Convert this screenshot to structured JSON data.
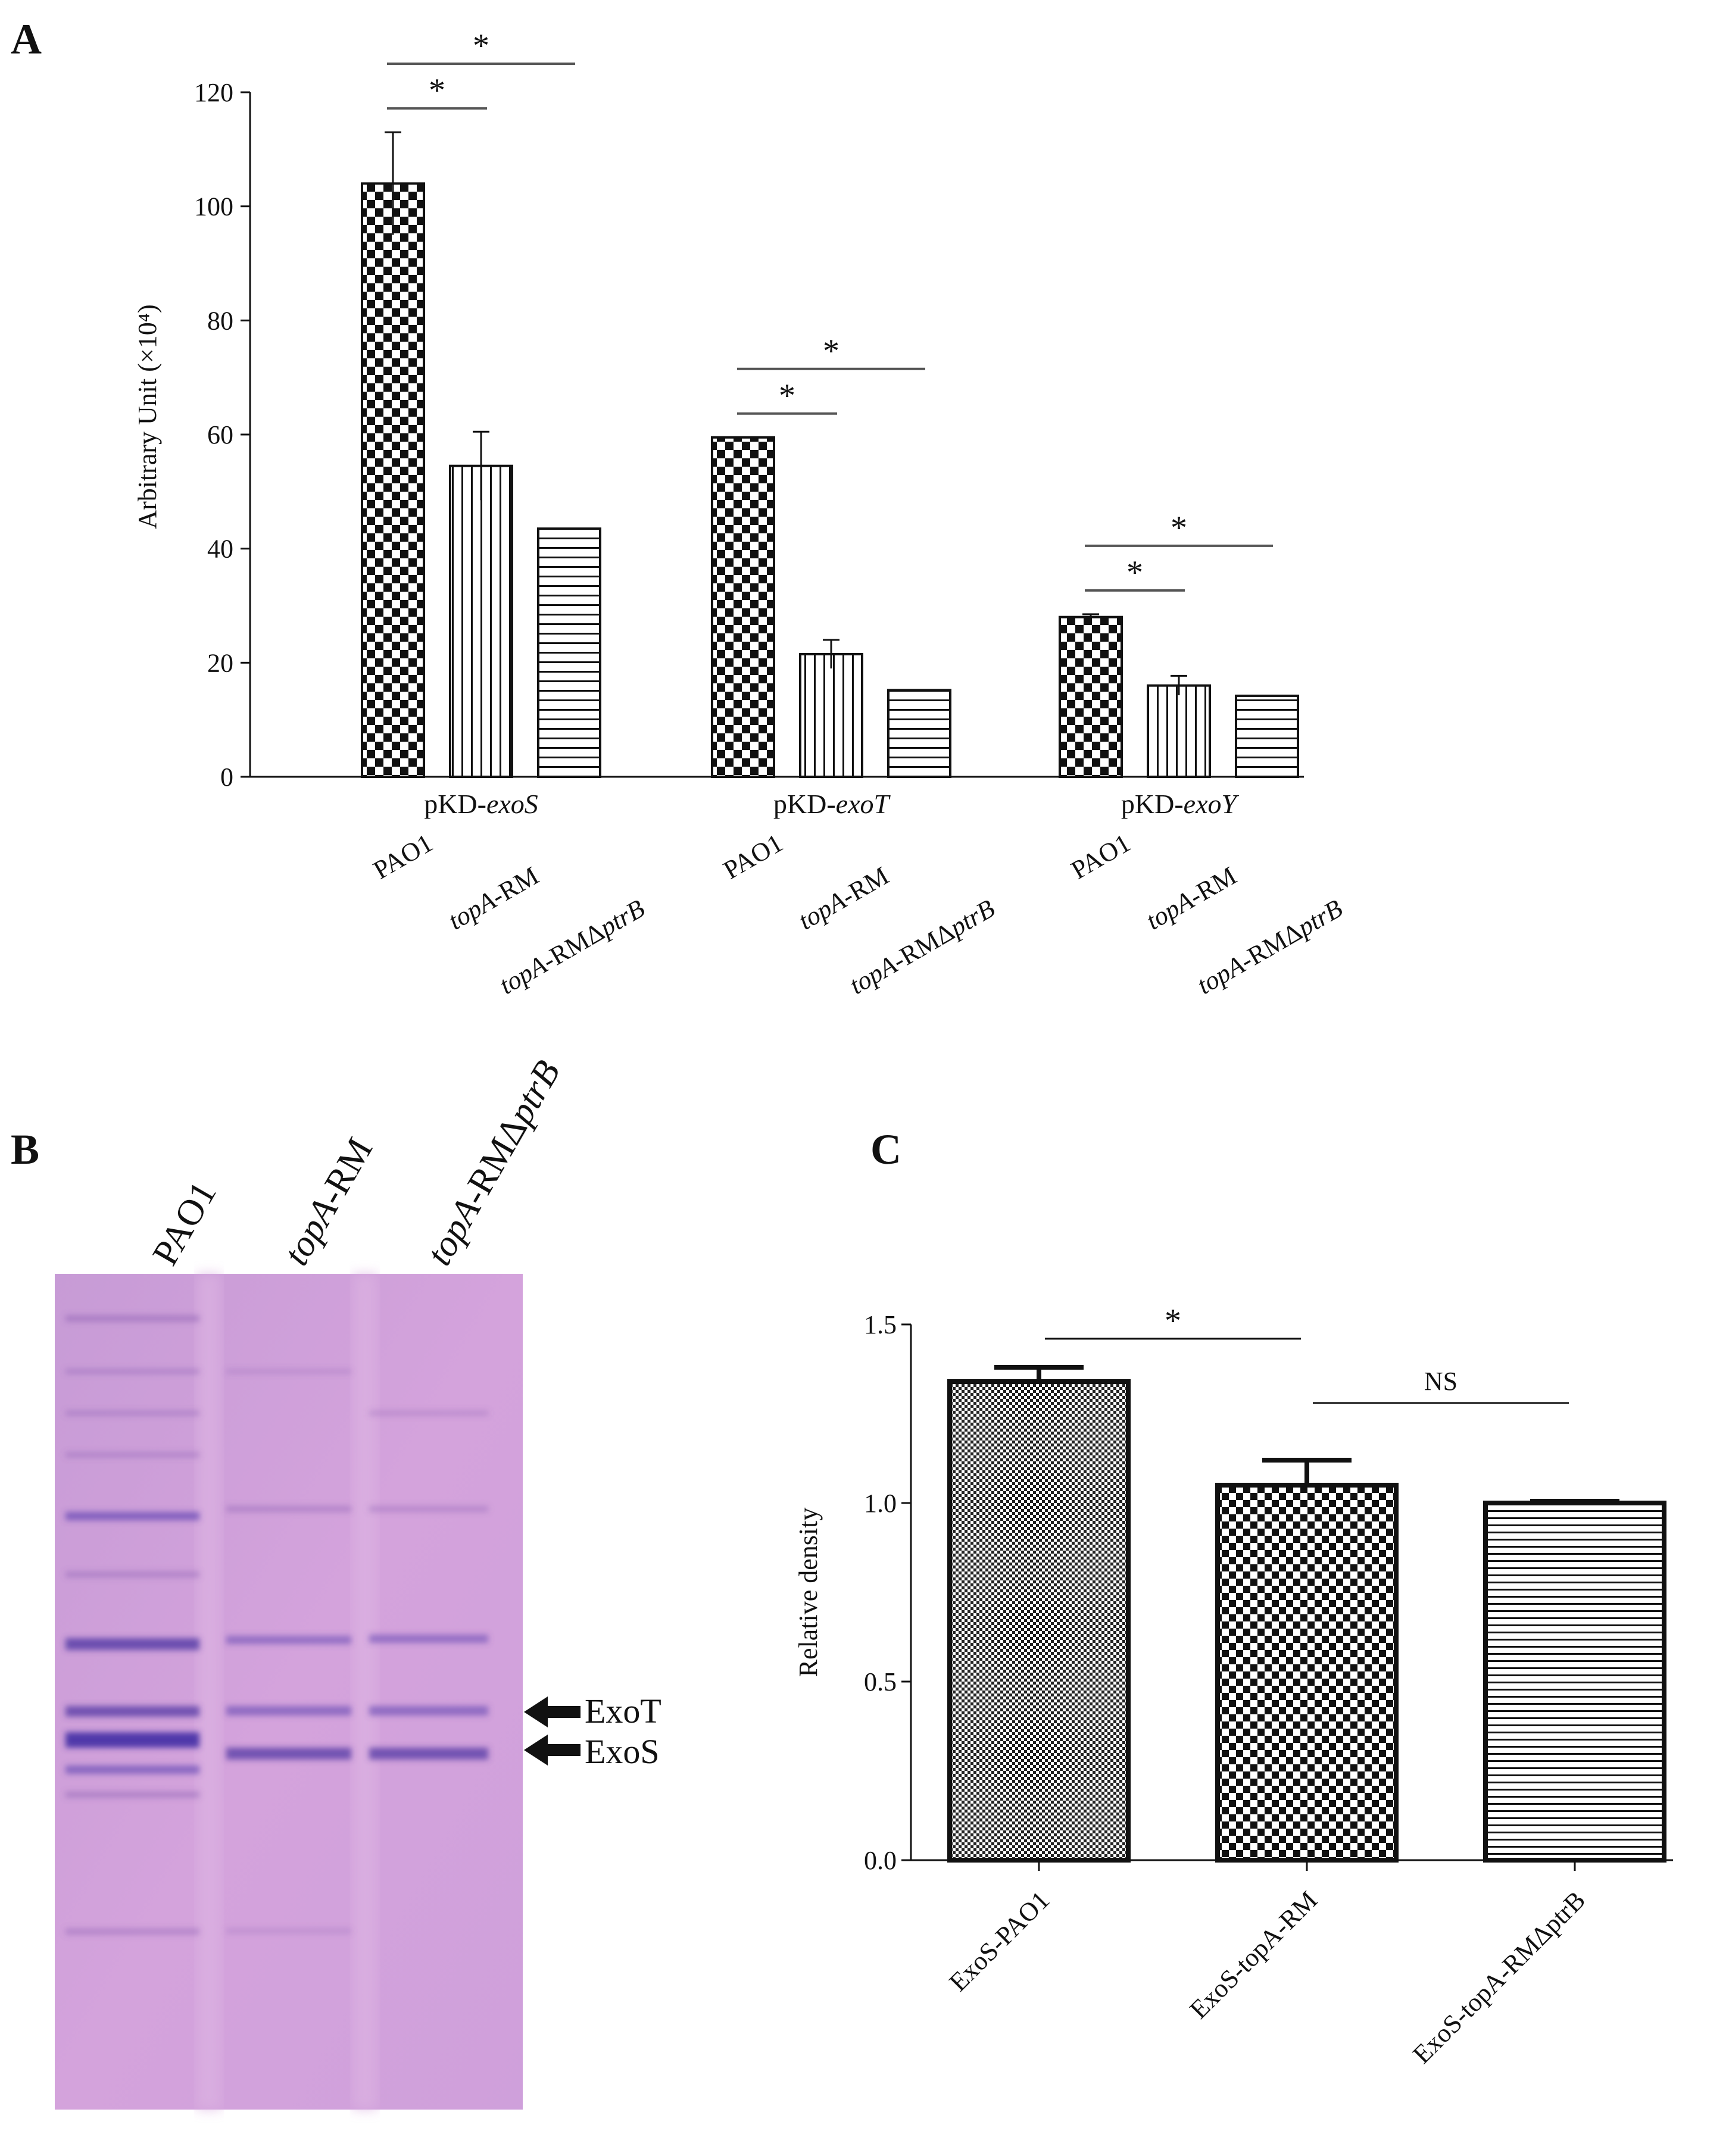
{
  "panels": {
    "A": "A",
    "B": "B",
    "C": "C"
  },
  "chart_data": [
    {
      "panel": "A",
      "type": "bar",
      "ylabel": "Arbitrary Unit (×10⁴)",
      "ylim": [
        0,
        120
      ],
      "yticks": [
        "0",
        "20",
        "40",
        "60",
        "80",
        "100",
        "120"
      ],
      "groups": [
        {
          "prefix": "pKD-",
          "gene": "exoS"
        },
        {
          "prefix": "pKD-",
          "gene": "exoT"
        },
        {
          "prefix": "pKD-",
          "gene": "exoY"
        }
      ],
      "series": [
        {
          "name_italic": "",
          "name_plain": "PAO1",
          "name_italic2": "",
          "values": [
            104,
            59.5,
            28
          ],
          "errors": [
            9,
            0,
            0.5
          ]
        },
        {
          "name_italic": "topA",
          "name_plain": "-RM",
          "name_italic2": "",
          "values": [
            54.5,
            21.5,
            16
          ],
          "errors": [
            6,
            2.5,
            1.7
          ]
        },
        {
          "name_italic": "topA",
          "name_plain": "-RMΔ",
          "name_italic2": "ptrB",
          "values": [
            43.5,
            15.2,
            14.2
          ],
          "errors": [
            0,
            0,
            0
          ]
        }
      ],
      "significance": [
        {
          "group": 0,
          "from": 0,
          "to": 1,
          "label": "*",
          "level": 1
        },
        {
          "group": 0,
          "from": 0,
          "to": 2,
          "label": "*",
          "level": 2
        },
        {
          "group": 1,
          "from": 0,
          "to": 1,
          "label": "*",
          "level": 1
        },
        {
          "group": 1,
          "from": 0,
          "to": 2,
          "label": "*",
          "level": 2
        },
        {
          "group": 2,
          "from": 0,
          "to": 1,
          "label": "*",
          "level": 1
        },
        {
          "group": 2,
          "from": 0,
          "to": 2,
          "label": "*",
          "level": 2
        }
      ]
    },
    {
      "panel": "C",
      "type": "bar",
      "ylabel": "Relative density",
      "ylim": [
        0,
        1.5
      ],
      "yticks": [
        "0.0",
        "0.5",
        "1.0",
        "1.5"
      ],
      "categories": [
        "ExoS-PAO1",
        "ExoS-topA-RM",
        "ExoS-topA-RMΔptrB"
      ],
      "values": [
        1.34,
        1.05,
        1.0
      ],
      "errors": [
        0.04,
        0.07,
        0.005
      ],
      "significance": [
        {
          "from": 0,
          "to": 1,
          "label": "*"
        },
        {
          "from": 1,
          "to": 2,
          "label": "NS"
        }
      ]
    }
  ],
  "blot": {
    "lanes": [
      {
        "italic": "",
        "plain": "PAO1",
        "italic2": ""
      },
      {
        "italic": "topA",
        "plain": "-RM",
        "italic2": ""
      },
      {
        "italic": "topA",
        "plain": "-RMΔ",
        "italic2": "ptrB"
      }
    ],
    "markers": [
      "ExoT",
      "ExoS"
    ]
  }
}
